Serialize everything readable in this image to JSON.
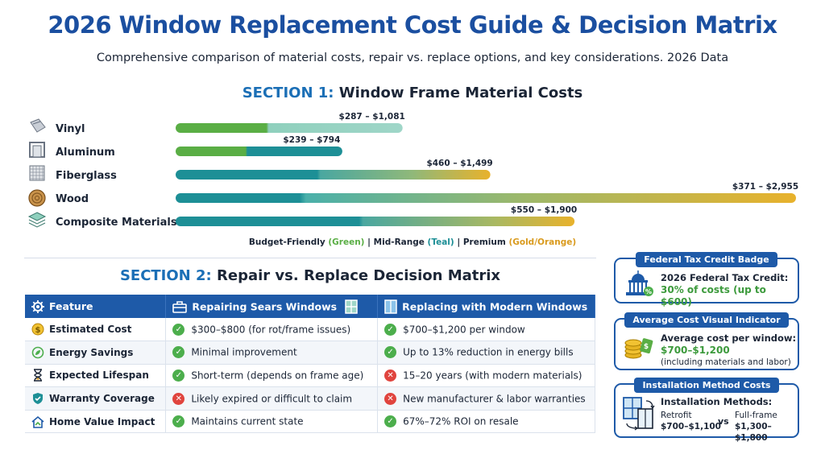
{
  "header": {
    "title": "2026 Window Replacement Cost Guide & Decision Matrix",
    "subtitle": "Comprehensive comparison of material costs, repair vs. replace options, and key considerations. 2026 Data"
  },
  "section1": {
    "num": "SECTION 1:",
    "title": " Window Frame Material Costs"
  },
  "chart_data": {
    "type": "bar",
    "orientation": "horizontal",
    "title": "Window Frame Material Costs",
    "categories": [
      "Vinyl",
      "Aluminum",
      "Fiberglass",
      "Wood",
      "Composite Materials"
    ],
    "range_labels": [
      "$287 – $1,081",
      "$239 – $794",
      "$460 – $1,499",
      "$371 – $2,955",
      "$550 – $1,900"
    ],
    "low": [
      287,
      239,
      460,
      371,
      550
    ],
    "high": [
      1081,
      794,
      1499,
      2955,
      1900
    ],
    "xlim": [
      0,
      2955
    ],
    "colors": {
      "budget": "#5aae45",
      "mid": "#1d8f96",
      "premium": "#e8b22c"
    },
    "grid": false,
    "legend_position": "bottom"
  },
  "legend": {
    "budget": "Budget-Friendly",
    "budget_paren": "(Green)",
    "sep1": " | ",
    "mid": "Mid-Range",
    "mid_paren": "(Teal)",
    "sep2": " | ",
    "premium": "Premium",
    "premium_paren": "(Gold/Orange)"
  },
  "section2": {
    "num": "SECTION 2:",
    "title": " Repair vs. Replace Decision Matrix"
  },
  "matrix": {
    "headers": [
      "Feature",
      "Repairing Sears Windows",
      "Replacing with Modern Windows"
    ],
    "rows": [
      {
        "feature": "Estimated Cost",
        "repair": "$300–$800 (for rot/frame issues)",
        "replace": "$700–$1,200 per window"
      },
      {
        "feature": "Energy Savings",
        "repair": "Minimal improvement",
        "replace": "Up to 13% reduction in energy bills"
      },
      {
        "feature": "Expected Lifespan",
        "repair": "Short-term (depends on frame age)",
        "replace": "15–20 years (with modern materials)"
      },
      {
        "feature": "Warranty Coverage",
        "repair": "Likely expired or difficult to claim",
        "replace": "New manufacturer & labor warranties"
      },
      {
        "feature": "Home Value Impact",
        "repair": "Maintains current state",
        "replace": "67%–72% ROI on resale"
      }
    ]
  },
  "cards": {
    "tax": {
      "tab": "Federal Tax Credit Badge",
      "line1": "2026 Federal Tax Credit:",
      "line2": "30% of costs (up to $600)"
    },
    "avg": {
      "tab": "Average Cost Visual Indicator",
      "line1": "Average cost per window:",
      "line2": "$700–$1,200",
      "line3": "(including materials and labor)"
    },
    "install": {
      "tab": "Installation Method Costs",
      "title": "Installation Methods:",
      "left_name": "Retrofit",
      "left_price": "$700–$1,100",
      "vs": "vs",
      "right_name": "Full-frame",
      "right_price": "$1,300–$1,800"
    }
  }
}
